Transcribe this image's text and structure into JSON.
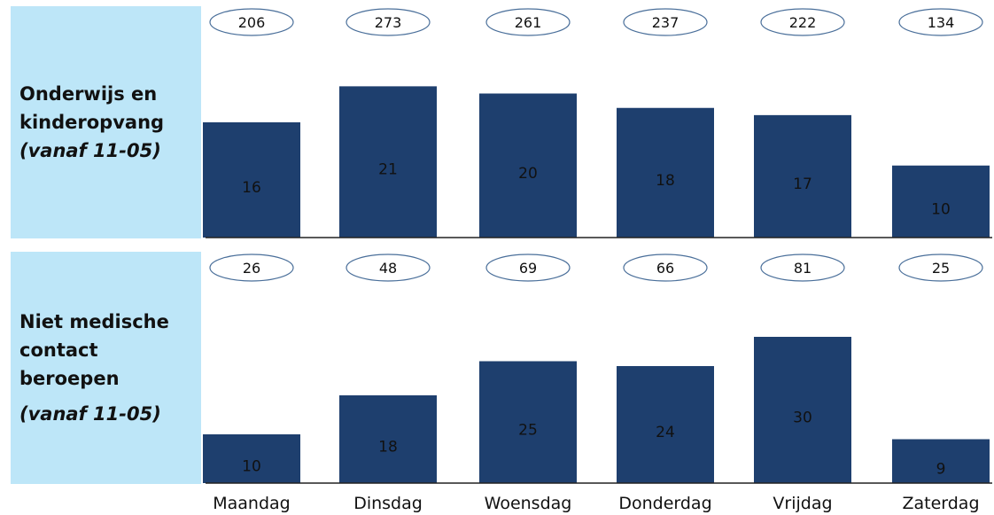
{
  "panels": [
    {
      "label_line1": "Onderwijs en",
      "label_line2": "kinderopvang",
      "label_line3": "(vanaf 11-05)"
    },
    {
      "label_line1": "Niet medische",
      "label_line2": "contact",
      "label_line3": "beroepen",
      "label_line4": "(vanaf 11-05)"
    }
  ],
  "colors": {
    "bar": "#1e3f6e",
    "panel_bg": "#bde6f8",
    "bubble_stroke": "#4a6f9a"
  },
  "chart_data": [
    {
      "type": "bar",
      "categories": [
        "Maandag",
        "Dinsdag",
        "Woensdag",
        "Donderdag",
        "Vrijdag",
        "Zaterdag"
      ],
      "values": [
        16,
        21,
        20,
        18,
        17,
        10
      ],
      "counts": [
        "206",
        "273",
        "261",
        "237",
        "222",
        "134"
      ]
    },
    {
      "type": "bar",
      "categories": [
        "Maandag",
        "Dinsdag",
        "Woensdag",
        "Donderdag",
        "Vrijdag",
        "Zaterdag"
      ],
      "values": [
        10,
        18,
        25,
        24,
        30,
        9
      ],
      "counts": [
        "26",
        "48",
        "69",
        "66",
        "81",
        "25"
      ]
    }
  ]
}
